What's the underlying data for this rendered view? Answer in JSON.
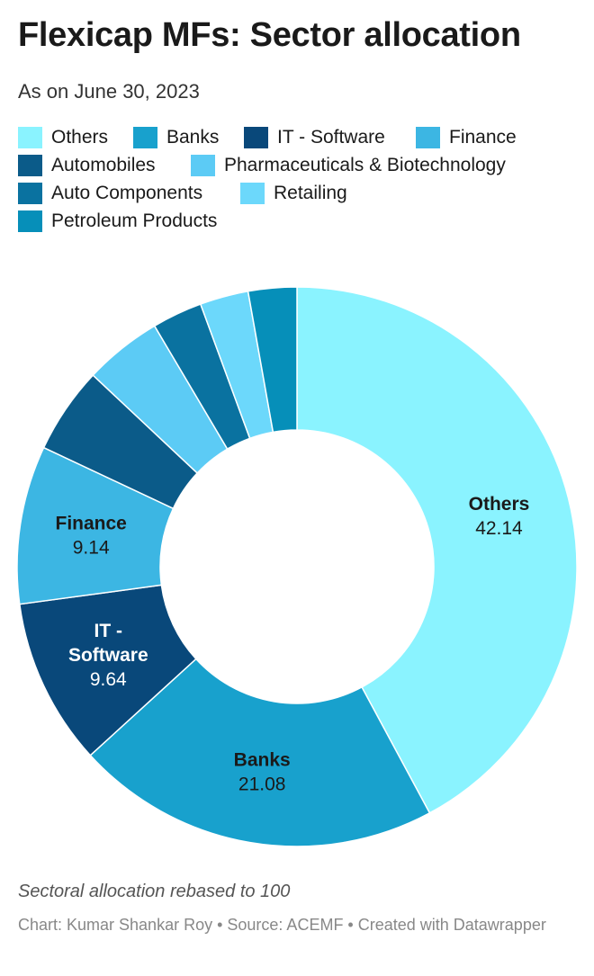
{
  "header": {
    "title": "Flexicap MFs: Sector allocation",
    "subtitle": "As on June 30, 2023"
  },
  "chart_data": {
    "type": "pie",
    "donut": true,
    "legend_position": "top",
    "slices": [
      {
        "label": "Others",
        "value": 42.14,
        "color": "#8af3ff",
        "show_label": true,
        "label_lines": [
          "Others"
        ],
        "text_color": "#1a1a1a"
      },
      {
        "label": "Banks",
        "value": 21.08,
        "color": "#18a1cd",
        "show_label": true,
        "label_lines": [
          "Banks"
        ],
        "text_color": "#1a1a1a"
      },
      {
        "label": "IT - Software",
        "value": 9.64,
        "color": "#09487a",
        "show_label": true,
        "label_lines": [
          "IT -",
          "Software"
        ],
        "text_color": "#ffffff"
      },
      {
        "label": "Finance",
        "value": 9.14,
        "color": "#3cb6e3",
        "show_label": true,
        "label_lines": [
          "Finance"
        ],
        "text_color": "#1a1a1a"
      },
      {
        "label": "Automobiles",
        "value": 5.0,
        "color": "#0b5b89",
        "show_label": false
      },
      {
        "label": "Pharmaceuticals & Biotechnology",
        "value": 4.5,
        "color": "#5ccbf5",
        "show_label": false
      },
      {
        "label": "Auto Components",
        "value": 2.9,
        "color": "#0a72a0",
        "show_label": false
      },
      {
        "label": "Retailing",
        "value": 2.8,
        "color": "#6cd8fb",
        "show_label": false
      },
      {
        "label": "Petroleum Products",
        "value": 2.8,
        "color": "#068fb9",
        "show_label": false
      }
    ]
  },
  "footer": {
    "note": "Sectoral allocation rebased to 100",
    "credit": "Chart: Kumar Shankar Roy • Source: ACEMF • Created with Datawrapper"
  }
}
